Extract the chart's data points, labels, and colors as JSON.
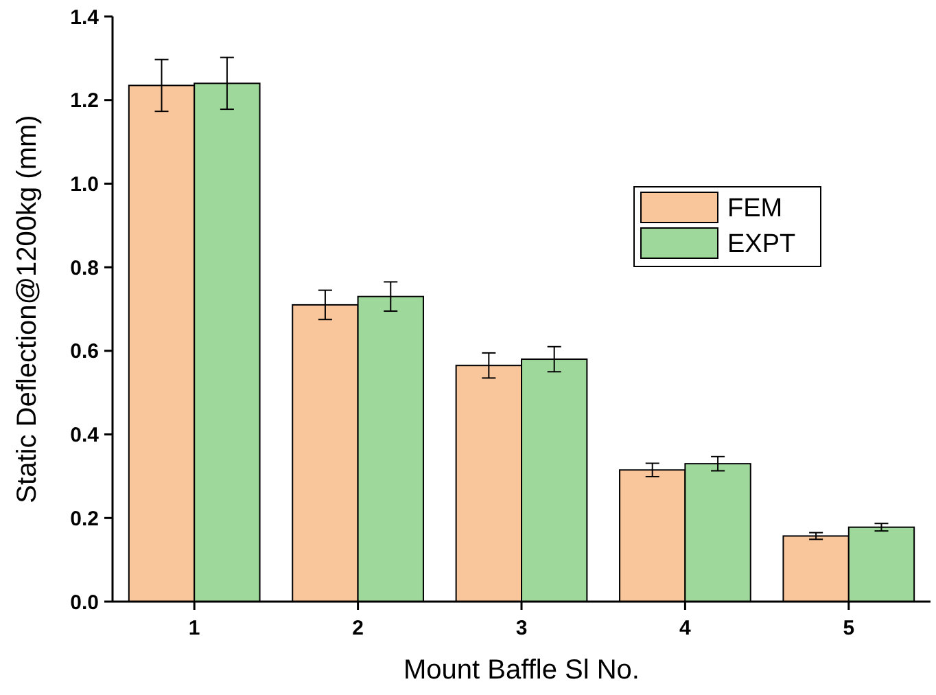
{
  "chart_data": {
    "type": "bar",
    "xlabel": "Mount Baffle Sl No.",
    "ylabel": "Static Deflection@1200kg (mm)",
    "categories": [
      "1",
      "2",
      "3",
      "4",
      "5"
    ],
    "series": [
      {
        "name": "FEM",
        "color": "#f9c59a",
        "values": [
          1.235,
          0.71,
          0.565,
          0.315,
          0.157
        ],
        "errors": [
          0.062,
          0.035,
          0.03,
          0.016,
          0.008
        ]
      },
      {
        "name": "EXPT",
        "color": "#9ed99b",
        "values": [
          1.24,
          0.73,
          0.58,
          0.33,
          0.178
        ],
        "errors": [
          0.062,
          0.035,
          0.03,
          0.017,
          0.009
        ]
      }
    ],
    "ylim": [
      0,
      1.4
    ],
    "yticks": [
      {
        "value": 0,
        "label": "0.0"
      },
      0.2,
      0.4,
      0.6,
      0.8,
      {
        "value": 1,
        "label": "1.0"
      },
      1.2,
      1.4
    ],
    "grid": false,
    "legend": "right"
  }
}
